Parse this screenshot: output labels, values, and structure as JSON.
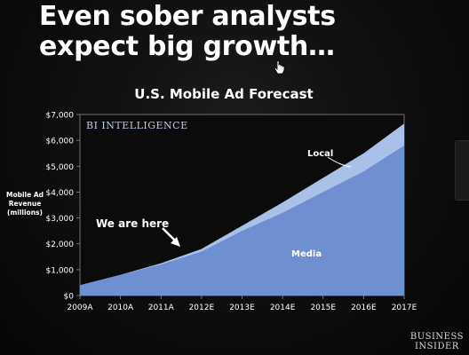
{
  "slide": {
    "title": "Even sober analysts expect big growth…",
    "logo_line1": "BUSINESS",
    "logo_line2": "INSIDER"
  },
  "colors": {
    "media": "#6e8fd0",
    "local": "#a9c1e8",
    "plot_bg": "#0b0b0b",
    "accent_text": "#b9c9ec"
  },
  "chart_data": {
    "type": "area",
    "title": "U.S. Mobile Ad Forecast",
    "brand_label": "BI INTELLIGENCE",
    "ylabel_lines": [
      "Mobile Ad",
      "Revenue",
      "(millions)"
    ],
    "x": [
      "2009A",
      "2010A",
      "2011A",
      "2012E",
      "2013E",
      "2014E",
      "2015E",
      "2016E",
      "2017E"
    ],
    "ylim": [
      0,
      7000
    ],
    "yticks": [
      0,
      1000,
      2000,
      3000,
      4000,
      5000,
      6000,
      7000
    ],
    "ytick_labels": [
      "$0",
      "$1,000",
      "$2,000",
      "$3,000",
      "$4,000",
      "$5,000",
      "$6,000",
      "$7,000"
    ],
    "stacked": true,
    "series": [
      {
        "name": "Media",
        "values": [
          400,
          800,
          1200,
          1700,
          2500,
          3200,
          4000,
          4800,
          5800
        ]
      },
      {
        "name": "Local",
        "values": [
          0,
          0,
          50,
          100,
          200,
          400,
          550,
          700,
          850
        ]
      }
    ],
    "annotations": [
      {
        "text": "We are here",
        "target_x": "2011A"
      }
    ],
    "grid": false,
    "legend": "inline labels"
  }
}
